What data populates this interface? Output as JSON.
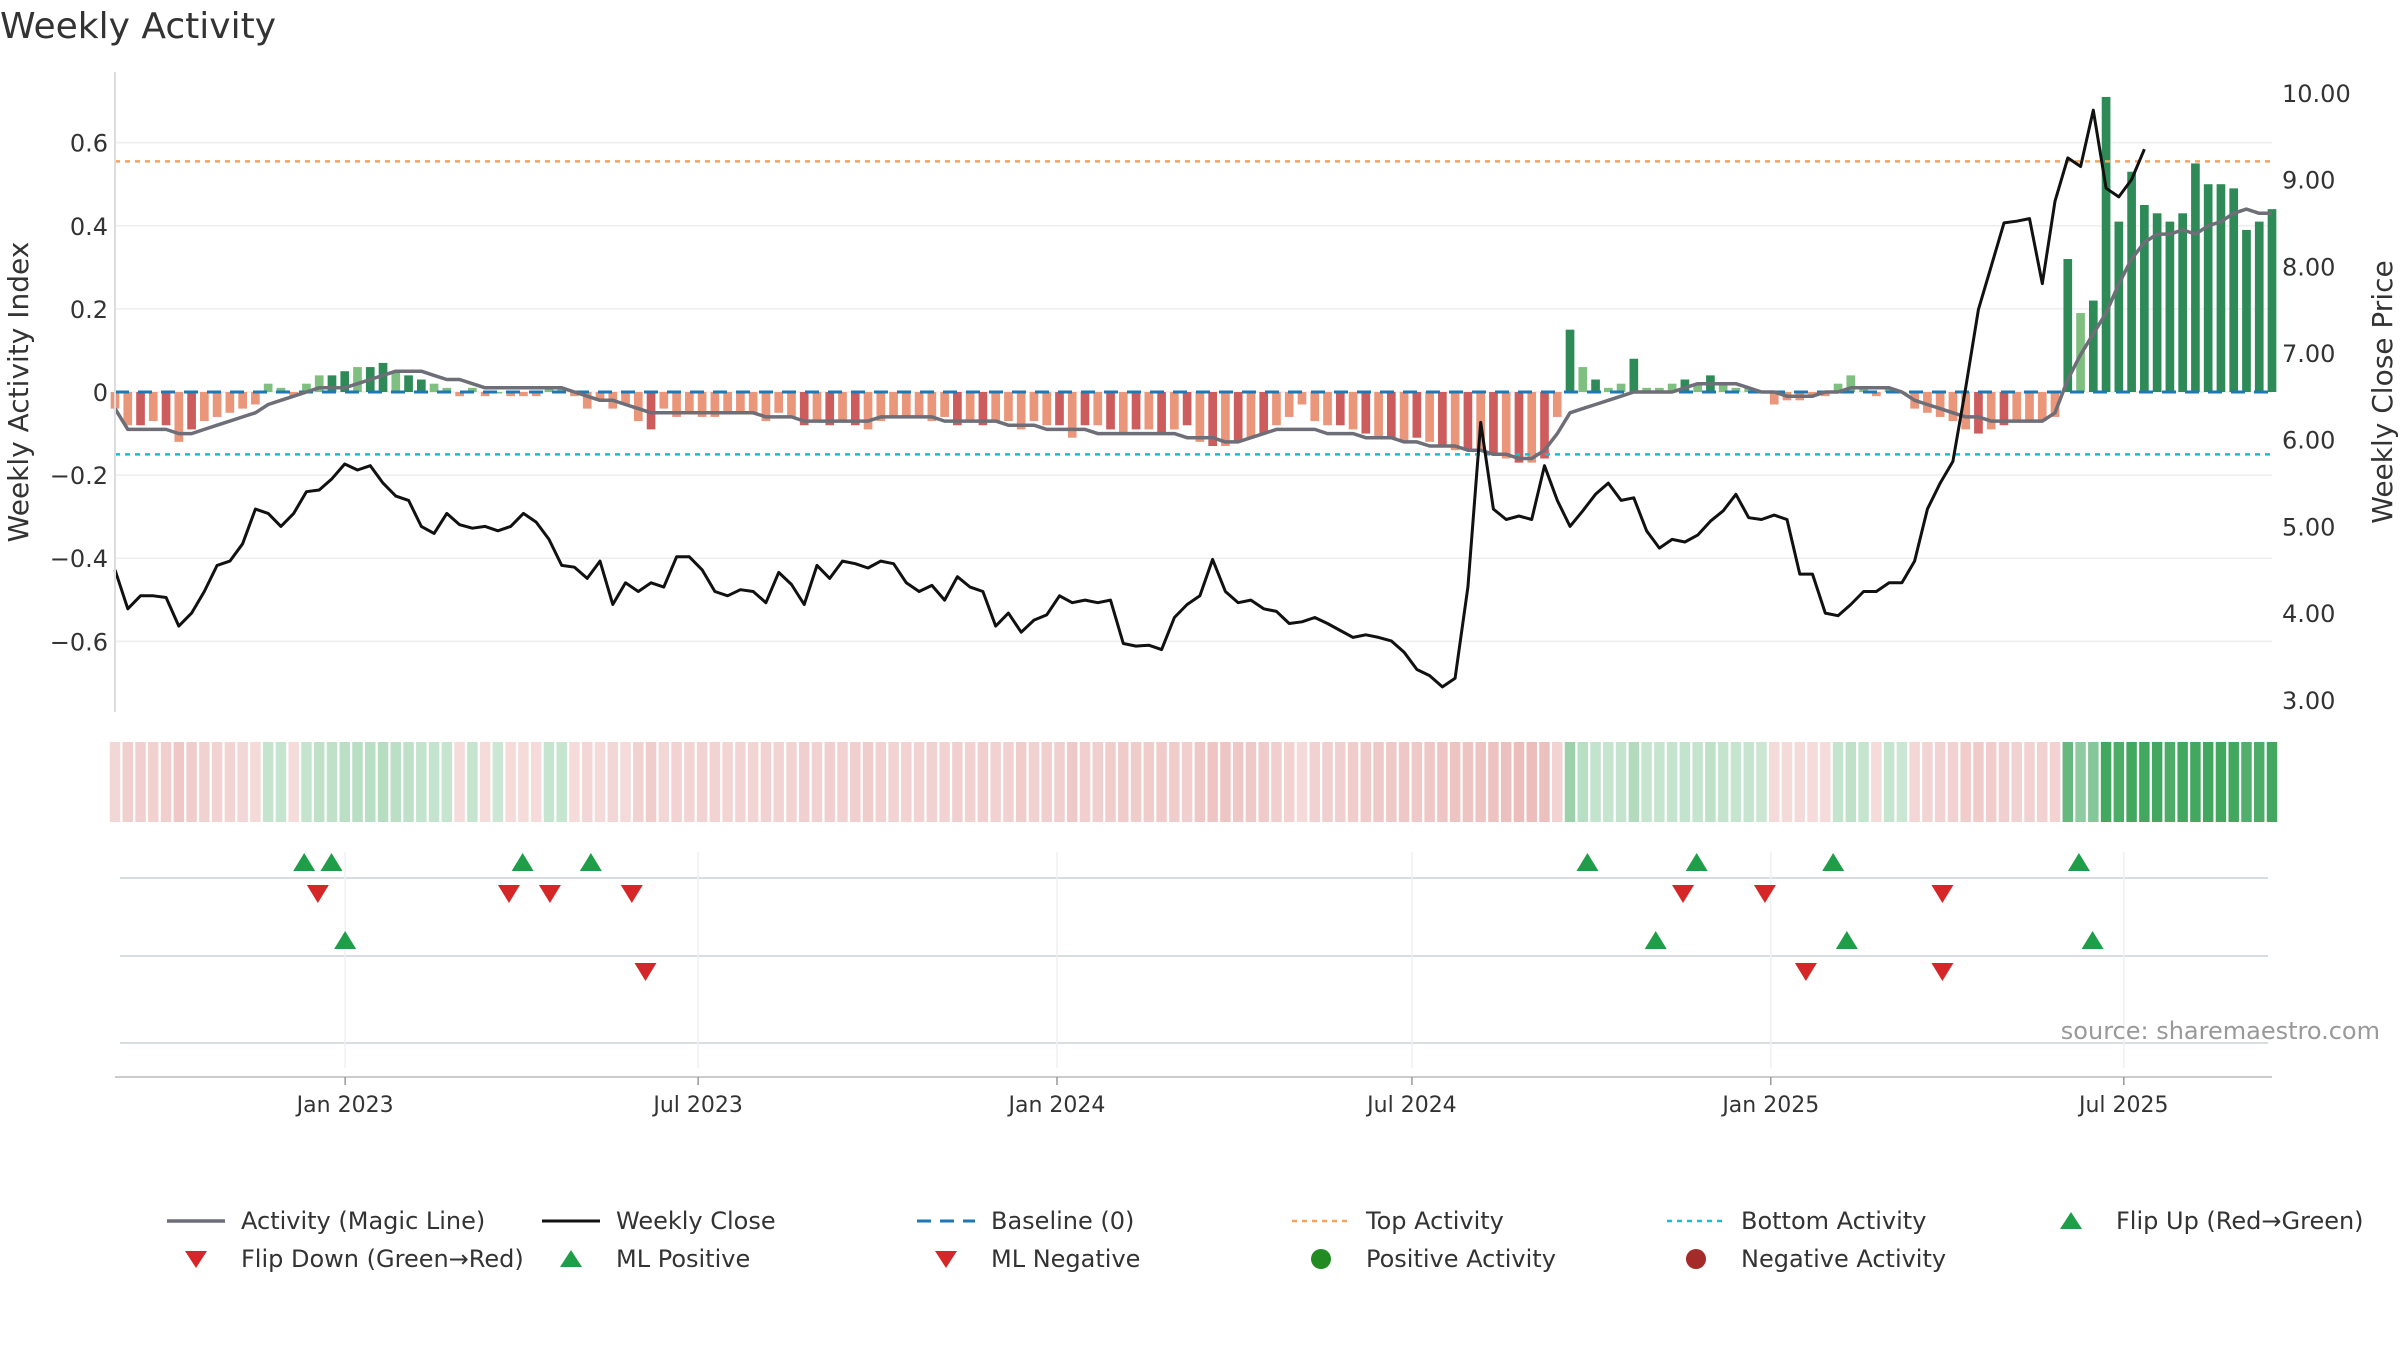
{
  "title": "Weekly Activity",
  "source": "source: sharemaestro.com",
  "colors": {
    "pos_strong": "#2e8b57",
    "pos_light": "#7fbf7f",
    "neg_strong": "#cd5c5c",
    "neg_light": "#e9967a",
    "magic_line": "#6e6e78",
    "close_line": "#111111",
    "baseline": "#1f77b4",
    "top_line": "#f4a460",
    "bottom_line": "#17becf",
    "flip_up": "#1f9e4a",
    "flip_down": "#d62728",
    "positive_dot": "#228b22",
    "negative_dot": "#a52a2a",
    "strip_pos": "#2e9e4f",
    "strip_neg": "#d97e7a"
  },
  "chart_data": {
    "type": "bar",
    "title": "Weekly Activity",
    "xlabel": "",
    "ylabel": "Weekly Activity Index",
    "y2label": "Weekly Close Price",
    "ylim": [
      -0.77,
      0.77
    ],
    "y2lim": [
      2.86,
      10.24
    ],
    "yticks": [
      0.6,
      0.4,
      0.2,
      0,
      -0.2,
      -0.4,
      -0.6
    ],
    "ytick_labels": [
      "0.6",
      "0.4",
      "0.2",
      "0",
      "−0.2",
      "−0.4",
      "−0.6"
    ],
    "y2ticks": [
      10,
      9,
      8,
      7,
      6,
      5,
      4,
      3
    ],
    "y2tick_labels": [
      "10.00",
      "9.00",
      "8.00",
      "7.00",
      "6.00",
      "5.00",
      "4.00",
      "3.00"
    ],
    "x_start": "2022-09-05",
    "x_end": "2025-09-15",
    "xticks": [
      "2023-01-01",
      "2023-07-01",
      "2024-01-01",
      "2024-07-01",
      "2025-01-01",
      "2025-07-01"
    ],
    "xtick_labels": [
      "Jan 2023",
      "Jul 2023",
      "Jan 2024",
      "Jul 2024",
      "Jan 2025",
      "Jul 2025"
    ],
    "top_activity": 0.555,
    "bottom_activity": -0.15,
    "baseline": 0,
    "grid": true,
    "legend_position": "bottom",
    "activity": [
      -0.04,
      -0.08,
      -0.08,
      -0.07,
      -0.08,
      -0.12,
      -0.09,
      -0.07,
      -0.06,
      -0.05,
      -0.04,
      -0.03,
      0.02,
      0.01,
      -0.01,
      0.02,
      0.04,
      0.04,
      0.05,
      0.06,
      0.06,
      0.07,
      0.05,
      0.04,
      0.03,
      0.02,
      0.01,
      -0.01,
      0.01,
      -0.01,
      0,
      -0.01,
      -0.01,
      -0.01,
      0.01,
      0.01,
      -0.01,
      -0.04,
      -0.02,
      -0.04,
      -0.03,
      -0.07,
      -0.09,
      -0.04,
      -0.06,
      -0.05,
      -0.06,
      -0.06,
      -0.05,
      -0.05,
      -0.05,
      -0.07,
      -0.05,
      -0.06,
      -0.08,
      -0.07,
      -0.08,
      -0.07,
      -0.08,
      -0.09,
      -0.07,
      -0.06,
      -0.06,
      -0.06,
      -0.07,
      -0.06,
      -0.08,
      -0.07,
      -0.08,
      -0.07,
      -0.07,
      -0.09,
      -0.07,
      -0.08,
      -0.08,
      -0.11,
      -0.08,
      -0.08,
      -0.09,
      -0.1,
      -0.09,
      -0.09,
      -0.1,
      -0.09,
      -0.08,
      -0.12,
      -0.13,
      -0.13,
      -0.12,
      -0.11,
      -0.1,
      -0.08,
      -0.06,
      -0.03,
      -0.07,
      -0.08,
      -0.08,
      -0.09,
      -0.1,
      -0.11,
      -0.11,
      -0.12,
      -0.11,
      -0.12,
      -0.13,
      -0.14,
      -0.14,
      -0.14,
      -0.15,
      -0.16,
      -0.17,
      -0.17,
      -0.16,
      -0.06,
      0.15,
      0.06,
      0.03,
      0.01,
      0.02,
      0.08,
      0.01,
      0.01,
      0.02,
      0.03,
      0.02,
      0.04,
      0.02,
      0.01,
      0.01,
      0,
      -0.03,
      -0.02,
      -0.02,
      -0.01,
      -0.01,
      0.02,
      0.04,
      0.01,
      -0.01,
      0.01,
      0,
      -0.04,
      -0.05,
      -0.06,
      -0.07,
      -0.09,
      -0.1,
      -0.09,
      -0.08,
      -0.07,
      -0.07,
      -0.07,
      -0.06,
      0.32,
      0.19,
      0.22,
      0.71,
      0.41,
      0.53,
      0.45,
      0.43,
      0.41,
      0.43,
      0.55,
      0.5,
      0.5,
      0.49,
      0.39,
      0.41,
      0.44
    ],
    "magic_line": [
      -0.04,
      -0.09,
      -0.09,
      -0.09,
      -0.09,
      -0.1,
      -0.1,
      -0.09,
      -0.08,
      -0.07,
      -0.06,
      -0.05,
      -0.03,
      -0.02,
      -0.01,
      0,
      0.01,
      0.01,
      0.01,
      0.02,
      0.03,
      0.04,
      0.05,
      0.05,
      0.05,
      0.04,
      0.03,
      0.03,
      0.02,
      0.01,
      0.01,
      0.01,
      0.01,
      0.01,
      0.01,
      0.01,
      0,
      -0.01,
      -0.02,
      -0.02,
      -0.03,
      -0.04,
      -0.05,
      -0.05,
      -0.05,
      -0.05,
      -0.05,
      -0.05,
      -0.05,
      -0.05,
      -0.05,
      -0.06,
      -0.06,
      -0.06,
      -0.07,
      -0.07,
      -0.07,
      -0.07,
      -0.07,
      -0.07,
      -0.06,
      -0.06,
      -0.06,
      -0.06,
      -0.06,
      -0.07,
      -0.07,
      -0.07,
      -0.07,
      -0.07,
      -0.08,
      -0.08,
      -0.08,
      -0.09,
      -0.09,
      -0.09,
      -0.09,
      -0.1,
      -0.1,
      -0.1,
      -0.1,
      -0.1,
      -0.1,
      -0.1,
      -0.11,
      -0.11,
      -0.11,
      -0.12,
      -0.12,
      -0.11,
      -0.1,
      -0.09,
      -0.09,
      -0.09,
      -0.09,
      -0.1,
      -0.1,
      -0.1,
      -0.11,
      -0.11,
      -0.11,
      -0.12,
      -0.12,
      -0.13,
      -0.13,
      -0.13,
      -0.14,
      -0.14,
      -0.15,
      -0.15,
      -0.16,
      -0.16,
      -0.14,
      -0.1,
      -0.05,
      -0.04,
      -0.03,
      -0.02,
      -0.01,
      0,
      0,
      0,
      0,
      0.01,
      0.02,
      0.02,
      0.02,
      0.02,
      0.01,
      0,
      0,
      -0.01,
      -0.01,
      -0.01,
      0,
      0,
      0.01,
      0.01,
      0.01,
      0.01,
      0,
      -0.02,
      -0.03,
      -0.04,
      -0.05,
      -0.06,
      -0.06,
      -0.07,
      -0.07,
      -0.07,
      -0.07,
      -0.07,
      -0.05,
      0.03,
      0.09,
      0.14,
      0.19,
      0.26,
      0.32,
      0.36,
      0.38,
      0.38,
      0.39,
      0.38,
      0.4,
      0.41,
      0.43,
      0.44,
      0.43,
      0.43
    ],
    "weekly_close": [
      4.5,
      4.05,
      4.2,
      4.2,
      4.18,
      3.85,
      4.0,
      4.25,
      4.55,
      4.6,
      4.8,
      5.2,
      5.15,
      5.0,
      5.15,
      5.4,
      5.42,
      5.55,
      5.72,
      5.65,
      5.7,
      5.5,
      5.35,
      5.3,
      5.0,
      4.92,
      5.15,
      5.02,
      4.98,
      5.0,
      4.95,
      5.0,
      5.15,
      5.05,
      4.85,
      4.55,
      4.53,
      4.4,
      4.6,
      4.1,
      4.35,
      4.25,
      4.35,
      4.3,
      4.65,
      4.65,
      4.5,
      4.25,
      4.2,
      4.27,
      4.25,
      4.12,
      4.47,
      4.33,
      4.1,
      4.55,
      4.4,
      4.6,
      4.57,
      4.52,
      4.6,
      4.57,
      4.35,
      4.25,
      4.32,
      4.15,
      4.42,
      4.3,
      4.25,
      3.85,
      4.0,
      3.78,
      3.92,
      3.98,
      4.2,
      4.12,
      4.15,
      4.12,
      4.15,
      3.65,
      3.62,
      3.63,
      3.58,
      3.95,
      4.1,
      4.2,
      4.62,
      4.25,
      4.12,
      4.15,
      4.05,
      4.02,
      3.88,
      3.9,
      3.95,
      3.88,
      3.8,
      3.72,
      3.75,
      3.72,
      3.68,
      3.55,
      3.35,
      3.28,
      3.15,
      3.25,
      4.3,
      6.2,
      5.2,
      5.08,
      5.12,
      5.08,
      5.7,
      5.3,
      5.0,
      5.18,
      5.37,
      5.5,
      5.3,
      5.33,
      4.95,
      4.75,
      4.85,
      4.82,
      4.9,
      5.06,
      5.18,
      5.37,
      5.1,
      5.08,
      5.13,
      5.08,
      4.45,
      4.45,
      4.0,
      3.97,
      4.1,
      4.25,
      4.25,
      4.35,
      4.35,
      4.6,
      5.2,
      5.5,
      5.75,
      6.6,
      7.5,
      8.0,
      8.5,
      8.52,
      8.55,
      7.8,
      8.75,
      9.25,
      9.15,
      9.8,
      8.9,
      8.8,
      9.0,
      9.35
    ],
    "flip_up_row1": [
      "2022-12-11",
      "2022-12-25",
      "2023-04-02",
      "2023-05-07",
      "2024-09-29",
      "2024-11-24",
      "2025-02-02",
      "2025-06-08"
    ],
    "flip_down_row1": [
      "2022-12-18",
      "2023-03-26",
      "2023-04-16",
      "2023-05-28",
      "2024-11-17",
      "2024-12-29",
      "2025-03-30"
    ],
    "ml_positive_row2": [
      "2023-01-01",
      "2024-11-03",
      "2025-02-09",
      "2025-06-15"
    ],
    "ml_negative_row2": [
      "2023-06-04",
      "2025-01-19",
      "2025-03-30"
    ],
    "legend": [
      {
        "label": "Activity (Magic Line)",
        "symbol": "line-gray"
      },
      {
        "label": "Weekly Close",
        "symbol": "line-black"
      },
      {
        "label": "Baseline (0)",
        "symbol": "dash-blue"
      },
      {
        "label": "Top Activity",
        "symbol": "dot-orange"
      },
      {
        "label": "Bottom Activity",
        "symbol": "dot-cyan"
      },
      {
        "label": "Flip Up (Red→Green)",
        "symbol": "triangle-up-green"
      },
      {
        "label": "Flip Down (Green→Red)",
        "symbol": "triangle-down-red"
      },
      {
        "label": "ML Positive",
        "symbol": "triangle-up-green"
      },
      {
        "label": "ML Negative",
        "symbol": "triangle-down-red"
      },
      {
        "label": "Positive Activity",
        "symbol": "circle-green"
      },
      {
        "label": "Negative Activity",
        "symbol": "circle-red"
      }
    ]
  }
}
